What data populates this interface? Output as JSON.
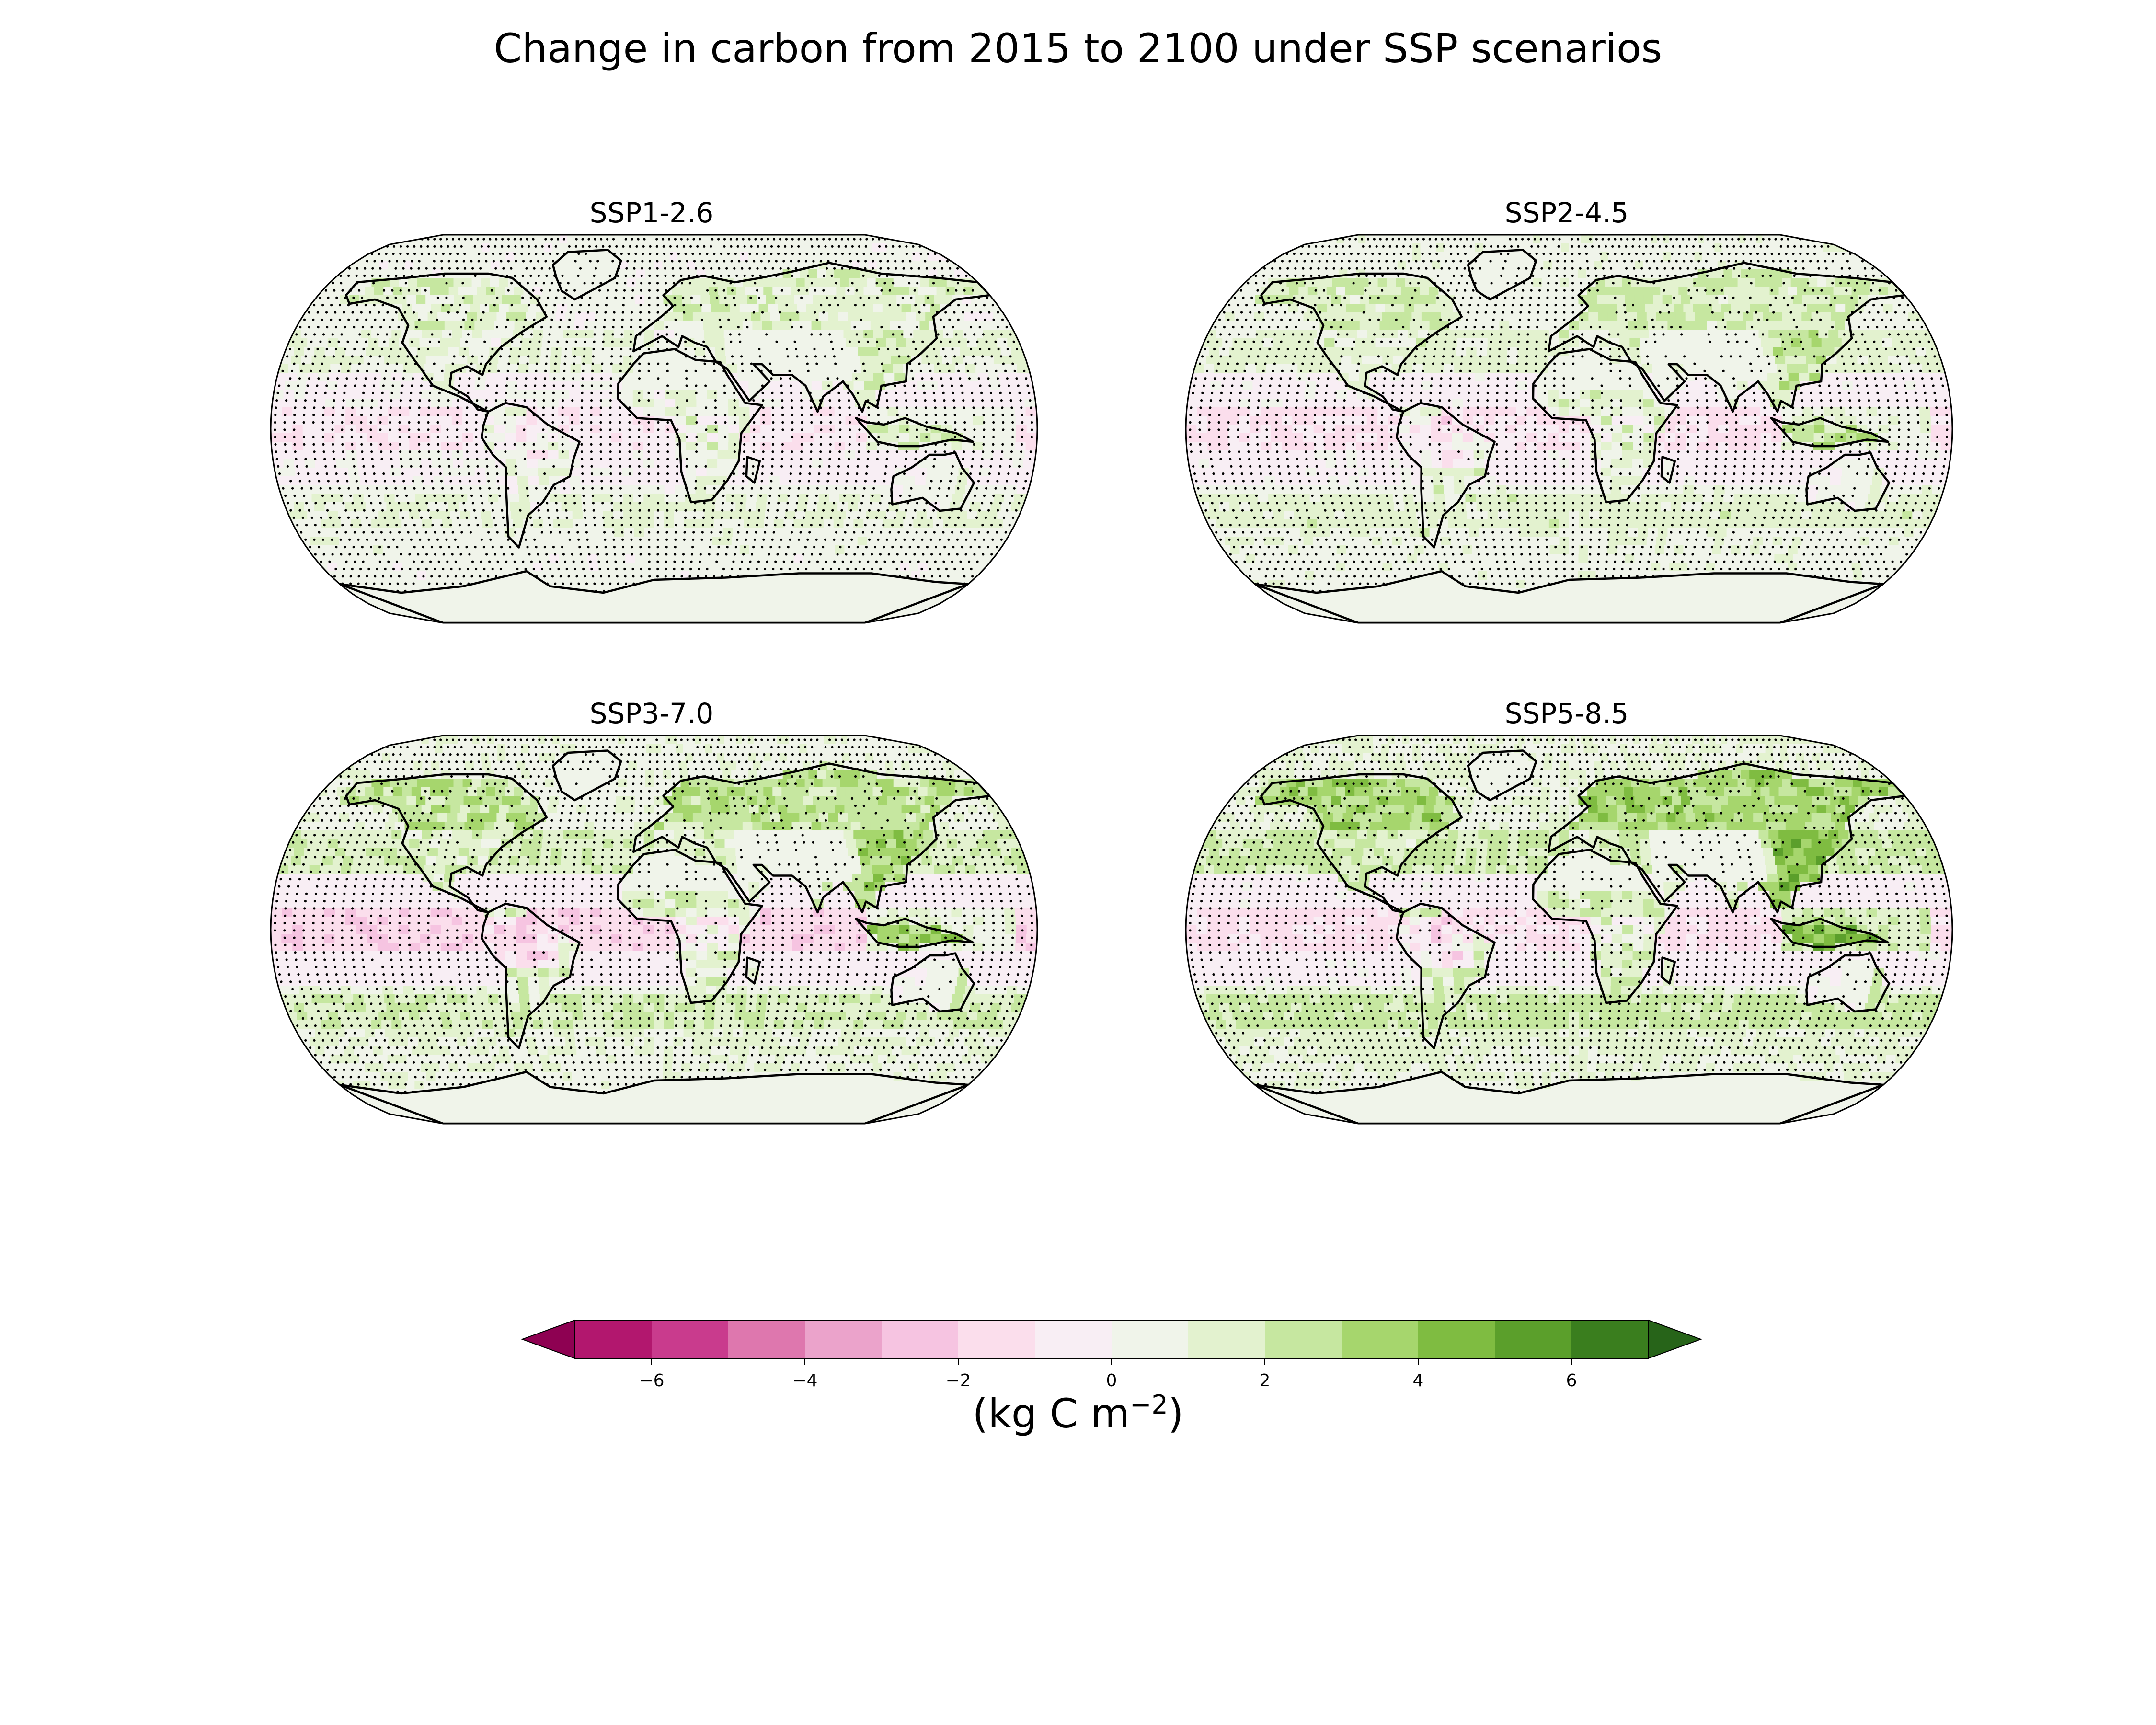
{
  "title": "Change in carbon from 2015 to 2100 under SSP scenarios",
  "panels": [
    {
      "label": "SSP1-2.6",
      "intensity": 0.55,
      "pink": 0.55
    },
    {
      "label": "SSP2-4.5",
      "intensity": 0.75,
      "pink": 0.8
    },
    {
      "label": "SSP3-7.0",
      "intensity": 1.0,
      "pink": 1.2
    },
    {
      "label": "SSP5-8.5",
      "intensity": 1.25,
      "pink": 0.9
    }
  ],
  "colorbar": {
    "label_prefix": "(kg C m",
    "label_exp": "−2",
    "label_suffix": ")",
    "ticks": [
      {
        "value": -6,
        "label": "−6"
      },
      {
        "value": -4,
        "label": "−4"
      },
      {
        "value": -2,
        "label": "−2"
      },
      {
        "value": 0,
        "label": "0"
      },
      {
        "value": 2,
        "label": "2"
      },
      {
        "value": 4,
        "label": "4"
      },
      {
        "value": 6,
        "label": "6"
      }
    ],
    "min": -7,
    "max": 7,
    "extend": "both",
    "colors": [
      "#8e0152",
      "#b2176e",
      "#c93b8d",
      "#de77ae",
      "#eba3cb",
      "#f6c4e1",
      "#fbdeec",
      "#f8eef4",
      "#f0f4ea",
      "#e3f2cf",
      "#c6e7a0",
      "#a6d66d",
      "#7fbc41",
      "#5b9f2b",
      "#3a7e1e",
      "#276419"
    ]
  },
  "stippling": true
}
